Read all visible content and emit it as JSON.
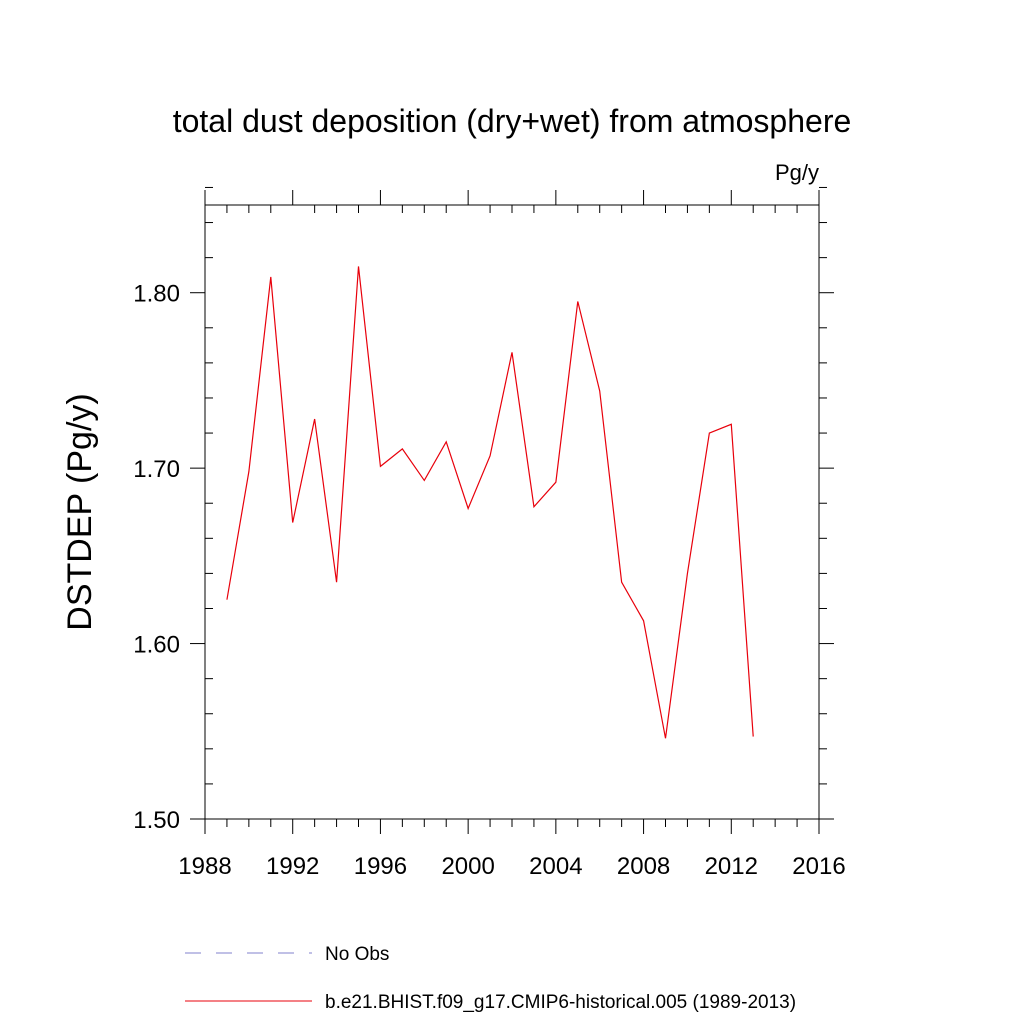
{
  "chart_data": {
    "type": "line",
    "title": "total dust deposition (dry+wet) from atmosphere",
    "units": "Pg/y",
    "xlabel": "",
    "ylabel": "DSTDEP  (Pg/y)",
    "xlim": [
      1988,
      2016
    ],
    "ylim": [
      1.5,
      1.85
    ],
    "x_ticks": [
      "1988",
      "1992",
      "1996",
      "2000",
      "2004",
      "2008",
      "2012",
      "2016"
    ],
    "x_tick_values": [
      1988,
      1992,
      1996,
      2000,
      2004,
      2008,
      2012,
      2016
    ],
    "y_ticks": [
      "1.50",
      "1.60",
      "1.70",
      "1.80"
    ],
    "y_tick_values": [
      1.5,
      1.6,
      1.7,
      1.8
    ],
    "x_minor_step": 1,
    "y_minor_step": 0.02,
    "grid": false,
    "legend_position": "bottom",
    "series": [
      {
        "name": "No Obs",
        "color": "#8080cc",
        "style": "dashed",
        "x": [],
        "values": []
      },
      {
        "name": "b.e21.BHIST.f09_g17.CMIP6-historical.005 (1989-2013)",
        "color": "#e8000b",
        "style": "solid",
        "x": [
          1989,
          1990,
          1991,
          1992,
          1993,
          1994,
          1995,
          1996,
          1997,
          1998,
          1999,
          2000,
          2001,
          2002,
          2003,
          2004,
          2005,
          2006,
          2007,
          2008,
          2009,
          2010,
          2011,
          2012,
          2013
        ],
        "values": [
          1.625,
          1.698,
          1.809,
          1.669,
          1.728,
          1.635,
          1.815,
          1.701,
          1.711,
          1.693,
          1.715,
          1.677,
          1.707,
          1.766,
          1.678,
          1.692,
          1.795,
          1.744,
          1.635,
          1.613,
          1.546,
          1.64,
          1.72,
          1.725,
          1.547
        ]
      }
    ]
  }
}
